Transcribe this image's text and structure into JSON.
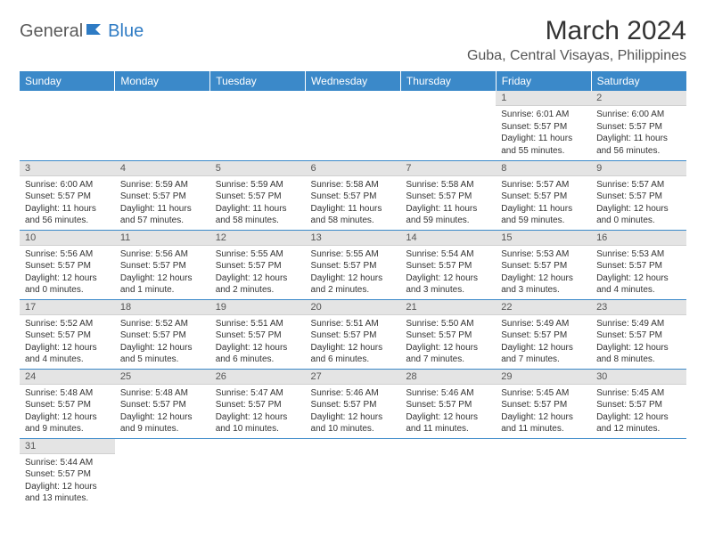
{
  "logo": {
    "text1": "General",
    "text2": "Blue"
  },
  "title": "March 2024",
  "location": "Guba, Central Visayas, Philippines",
  "colors": {
    "header_bg": "#3b89c9",
    "header_text": "#ffffff",
    "daynum_bg": "#e4e4e4",
    "daynum_text": "#555555",
    "cell_border": "#3b89c9",
    "body_text": "#333333",
    "logo_gray": "#5a5a5a",
    "logo_blue": "#2e7bc4"
  },
  "weekdays": [
    "Sunday",
    "Monday",
    "Tuesday",
    "Wednesday",
    "Thursday",
    "Friday",
    "Saturday"
  ],
  "weeks": [
    [
      null,
      null,
      null,
      null,
      null,
      {
        "n": "1",
        "sr": "Sunrise: 6:01 AM",
        "ss": "Sunset: 5:57 PM",
        "d1": "Daylight: 11 hours",
        "d2": "and 55 minutes."
      },
      {
        "n": "2",
        "sr": "Sunrise: 6:00 AM",
        "ss": "Sunset: 5:57 PM",
        "d1": "Daylight: 11 hours",
        "d2": "and 56 minutes."
      }
    ],
    [
      {
        "n": "3",
        "sr": "Sunrise: 6:00 AM",
        "ss": "Sunset: 5:57 PM",
        "d1": "Daylight: 11 hours",
        "d2": "and 56 minutes."
      },
      {
        "n": "4",
        "sr": "Sunrise: 5:59 AM",
        "ss": "Sunset: 5:57 PM",
        "d1": "Daylight: 11 hours",
        "d2": "and 57 minutes."
      },
      {
        "n": "5",
        "sr": "Sunrise: 5:59 AM",
        "ss": "Sunset: 5:57 PM",
        "d1": "Daylight: 11 hours",
        "d2": "and 58 minutes."
      },
      {
        "n": "6",
        "sr": "Sunrise: 5:58 AM",
        "ss": "Sunset: 5:57 PM",
        "d1": "Daylight: 11 hours",
        "d2": "and 58 minutes."
      },
      {
        "n": "7",
        "sr": "Sunrise: 5:58 AM",
        "ss": "Sunset: 5:57 PM",
        "d1": "Daylight: 11 hours",
        "d2": "and 59 minutes."
      },
      {
        "n": "8",
        "sr": "Sunrise: 5:57 AM",
        "ss": "Sunset: 5:57 PM",
        "d1": "Daylight: 11 hours",
        "d2": "and 59 minutes."
      },
      {
        "n": "9",
        "sr": "Sunrise: 5:57 AM",
        "ss": "Sunset: 5:57 PM",
        "d1": "Daylight: 12 hours",
        "d2": "and 0 minutes."
      }
    ],
    [
      {
        "n": "10",
        "sr": "Sunrise: 5:56 AM",
        "ss": "Sunset: 5:57 PM",
        "d1": "Daylight: 12 hours",
        "d2": "and 0 minutes."
      },
      {
        "n": "11",
        "sr": "Sunrise: 5:56 AM",
        "ss": "Sunset: 5:57 PM",
        "d1": "Daylight: 12 hours",
        "d2": "and 1 minute."
      },
      {
        "n": "12",
        "sr": "Sunrise: 5:55 AM",
        "ss": "Sunset: 5:57 PM",
        "d1": "Daylight: 12 hours",
        "d2": "and 2 minutes."
      },
      {
        "n": "13",
        "sr": "Sunrise: 5:55 AM",
        "ss": "Sunset: 5:57 PM",
        "d1": "Daylight: 12 hours",
        "d2": "and 2 minutes."
      },
      {
        "n": "14",
        "sr": "Sunrise: 5:54 AM",
        "ss": "Sunset: 5:57 PM",
        "d1": "Daylight: 12 hours",
        "d2": "and 3 minutes."
      },
      {
        "n": "15",
        "sr": "Sunrise: 5:53 AM",
        "ss": "Sunset: 5:57 PM",
        "d1": "Daylight: 12 hours",
        "d2": "and 3 minutes."
      },
      {
        "n": "16",
        "sr": "Sunrise: 5:53 AM",
        "ss": "Sunset: 5:57 PM",
        "d1": "Daylight: 12 hours",
        "d2": "and 4 minutes."
      }
    ],
    [
      {
        "n": "17",
        "sr": "Sunrise: 5:52 AM",
        "ss": "Sunset: 5:57 PM",
        "d1": "Daylight: 12 hours",
        "d2": "and 4 minutes."
      },
      {
        "n": "18",
        "sr": "Sunrise: 5:52 AM",
        "ss": "Sunset: 5:57 PM",
        "d1": "Daylight: 12 hours",
        "d2": "and 5 minutes."
      },
      {
        "n": "19",
        "sr": "Sunrise: 5:51 AM",
        "ss": "Sunset: 5:57 PM",
        "d1": "Daylight: 12 hours",
        "d2": "and 6 minutes."
      },
      {
        "n": "20",
        "sr": "Sunrise: 5:51 AM",
        "ss": "Sunset: 5:57 PM",
        "d1": "Daylight: 12 hours",
        "d2": "and 6 minutes."
      },
      {
        "n": "21",
        "sr": "Sunrise: 5:50 AM",
        "ss": "Sunset: 5:57 PM",
        "d1": "Daylight: 12 hours",
        "d2": "and 7 minutes."
      },
      {
        "n": "22",
        "sr": "Sunrise: 5:49 AM",
        "ss": "Sunset: 5:57 PM",
        "d1": "Daylight: 12 hours",
        "d2": "and 7 minutes."
      },
      {
        "n": "23",
        "sr": "Sunrise: 5:49 AM",
        "ss": "Sunset: 5:57 PM",
        "d1": "Daylight: 12 hours",
        "d2": "and 8 minutes."
      }
    ],
    [
      {
        "n": "24",
        "sr": "Sunrise: 5:48 AM",
        "ss": "Sunset: 5:57 PM",
        "d1": "Daylight: 12 hours",
        "d2": "and 9 minutes."
      },
      {
        "n": "25",
        "sr": "Sunrise: 5:48 AM",
        "ss": "Sunset: 5:57 PM",
        "d1": "Daylight: 12 hours",
        "d2": "and 9 minutes."
      },
      {
        "n": "26",
        "sr": "Sunrise: 5:47 AM",
        "ss": "Sunset: 5:57 PM",
        "d1": "Daylight: 12 hours",
        "d2": "and 10 minutes."
      },
      {
        "n": "27",
        "sr": "Sunrise: 5:46 AM",
        "ss": "Sunset: 5:57 PM",
        "d1": "Daylight: 12 hours",
        "d2": "and 10 minutes."
      },
      {
        "n": "28",
        "sr": "Sunrise: 5:46 AM",
        "ss": "Sunset: 5:57 PM",
        "d1": "Daylight: 12 hours",
        "d2": "and 11 minutes."
      },
      {
        "n": "29",
        "sr": "Sunrise: 5:45 AM",
        "ss": "Sunset: 5:57 PM",
        "d1": "Daylight: 12 hours",
        "d2": "and 11 minutes."
      },
      {
        "n": "30",
        "sr": "Sunrise: 5:45 AM",
        "ss": "Sunset: 5:57 PM",
        "d1": "Daylight: 12 hours",
        "d2": "and 12 minutes."
      }
    ],
    [
      {
        "n": "31",
        "sr": "Sunrise: 5:44 AM",
        "ss": "Sunset: 5:57 PM",
        "d1": "Daylight: 12 hours",
        "d2": "and 13 minutes."
      },
      null,
      null,
      null,
      null,
      null,
      null
    ]
  ]
}
